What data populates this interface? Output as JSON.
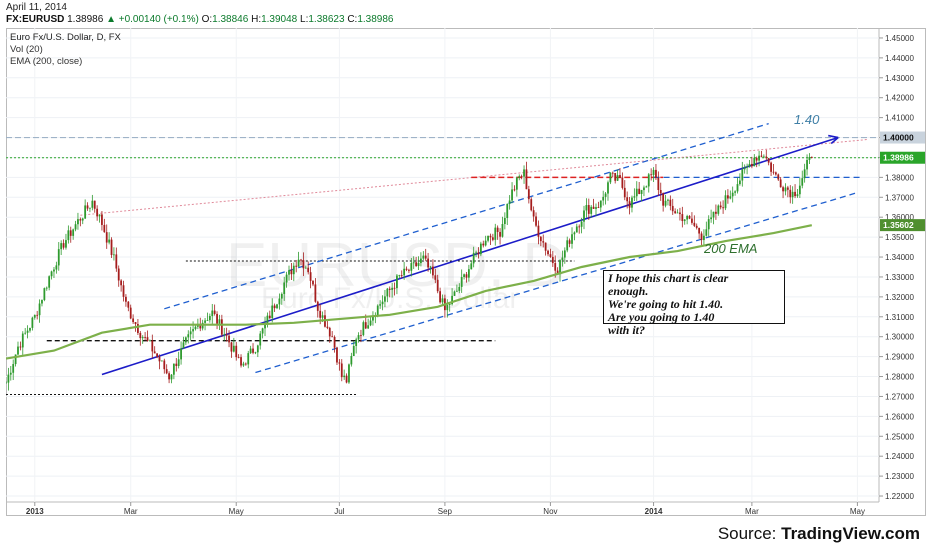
{
  "header": {
    "date": "April 11, 2014",
    "symbol": "FX:EURUSD",
    "last": "1.38986",
    "change": "+0.00140 (+0.1%)",
    "o_label": "O:",
    "o": "1.38846",
    "h_label": "H:",
    "h": "1.39048",
    "l_label": "L:",
    "l": "1.38623",
    "c_label": "C:",
    "c": "1.38986"
  },
  "legend": {
    "title": "Euro Fx/U.S. Dollar, D, FX",
    "vol": "Vol (20)",
    "ema": "EMA (200, close)"
  },
  "watermark": {
    "symbol": "EURUSD, D",
    "name": "Euro Fx/U.S. Dollar"
  },
  "annotations": {
    "target": "1.40",
    "ema_label": "200 EMA",
    "note": [
      "I hope this chart is clear",
      "enough.",
      "We're going to hit 1.40.",
      "Are you going to 1.40",
      "with it?"
    ]
  },
  "footer": {
    "prefix": "Source: ",
    "brand": "TradingView.com"
  },
  "colors": {
    "up": "#2e9a2e",
    "down": "#a51d1d",
    "ema": "#7db04a",
    "trend": "#1c1cc8",
    "channel": "#1f5fcf",
    "last_price": "#2aa52a",
    "level": "#9fb3c8"
  },
  "chart_data": {
    "type": "candlestick",
    "ylim": [
      1.217,
      1.455
    ],
    "y_ticks": [
      "1.45000",
      "1.44000",
      "1.43000",
      "1.42000",
      "1.41000",
      "1.40000",
      "1.39000",
      "1.38000",
      "1.37000",
      "1.36000",
      "1.35000",
      "1.34000",
      "1.33000",
      "1.32000",
      "1.31000",
      "1.30000",
      "1.29000",
      "1.28000",
      "1.27000",
      "1.26000",
      "1.25000",
      "1.24000",
      "1.23000",
      "1.22000"
    ],
    "x_ticks": [
      {
        "label": "2013",
        "bar": 12,
        "bold": true
      },
      {
        "label": "Mar",
        "bar": 52
      },
      {
        "label": "May",
        "bar": 96
      },
      {
        "label": "Jul",
        "bar": 139
      },
      {
        "label": "Sep",
        "bar": 183
      },
      {
        "label": "Nov",
        "bar": 227
      },
      {
        "label": "2014",
        "bar": 270,
        "bold": true
      },
      {
        "label": "Mar",
        "bar": 311
      },
      {
        "label": "May",
        "bar": 355
      }
    ],
    "price_labels": [
      {
        "value": "1.40000",
        "y": 1.4,
        "style": "level"
      },
      {
        "value": "1.38986",
        "y": 1.38986,
        "style": "last"
      },
      {
        "value": "1.35602",
        "y": 1.35602,
        "style": "ema"
      }
    ],
    "close_anchors": [
      [
        0,
        1.277
      ],
      [
        5,
        1.295
      ],
      [
        12,
        1.31
      ],
      [
        18,
        1.33
      ],
      [
        24,
        1.347
      ],
      [
        30,
        1.358
      ],
      [
        36,
        1.368
      ],
      [
        40,
        1.357
      ],
      [
        45,
        1.339
      ],
      [
        50,
        1.316
      ],
      [
        56,
        1.302
      ],
      [
        62,
        1.292
      ],
      [
        68,
        1.28
      ],
      [
        74,
        1.295
      ],
      [
        80,
        1.306
      ],
      [
        86,
        1.312
      ],
      [
        92,
        1.3
      ],
      [
        98,
        1.285
      ],
      [
        104,
        1.295
      ],
      [
        110,
        1.311
      ],
      [
        116,
        1.327
      ],
      [
        122,
        1.34
      ],
      [
        126,
        1.334
      ],
      [
        130,
        1.315
      ],
      [
        136,
        1.3
      ],
      [
        140,
        1.28
      ],
      [
        142,
        1.278
      ],
      [
        146,
        1.3
      ],
      [
        152,
        1.31
      ],
      [
        158,
        1.32
      ],
      [
        164,
        1.33
      ],
      [
        170,
        1.335
      ],
      [
        174,
        1.339
      ],
      [
        178,
        1.33
      ],
      [
        183,
        1.313
      ],
      [
        188,
        1.323
      ],
      [
        194,
        1.337
      ],
      [
        200,
        1.35
      ],
      [
        206,
        1.353
      ],
      [
        210,
        1.37
      ],
      [
        214,
        1.38
      ],
      [
        216,
        1.382
      ],
      [
        220,
        1.358
      ],
      [
        226,
        1.342
      ],
      [
        230,
        1.334
      ],
      [
        236,
        1.352
      ],
      [
        242,
        1.364
      ],
      [
        248,
        1.367
      ],
      [
        252,
        1.38
      ],
      [
        256,
        1.378
      ],
      [
        260,
        1.367
      ],
      [
        266,
        1.376
      ],
      [
        270,
        1.382
      ],
      [
        274,
        1.368
      ],
      [
        280,
        1.362
      ],
      [
        286,
        1.357
      ],
      [
        290,
        1.351
      ],
      [
        296,
        1.362
      ],
      [
        302,
        1.372
      ],
      [
        308,
        1.383
      ],
      [
        312,
        1.39
      ],
      [
        316,
        1.392
      ],
      [
        320,
        1.382
      ],
      [
        324,
        1.376
      ],
      [
        328,
        1.372
      ],
      [
        330,
        1.374
      ],
      [
        334,
        1.386
      ],
      [
        336,
        1.39
      ]
    ],
    "ema_points": [
      [
        0,
        1.289
      ],
      [
        20,
        1.293
      ],
      [
        40,
        1.302
      ],
      [
        60,
        1.306
      ],
      [
        80,
        1.306
      ],
      [
        100,
        1.306
      ],
      [
        120,
        1.307
      ],
      [
        140,
        1.309
      ],
      [
        160,
        1.311
      ],
      [
        180,
        1.315
      ],
      [
        200,
        1.323
      ],
      [
        220,
        1.328
      ],
      [
        240,
        1.335
      ],
      [
        260,
        1.34
      ],
      [
        280,
        1.343
      ],
      [
        300,
        1.348
      ],
      [
        320,
        1.352
      ],
      [
        336,
        1.356
      ]
    ],
    "lines": {
      "main_trend": [
        [
          40,
          1.281
        ],
        [
          347,
          1.4
        ]
      ],
      "channel_upper": [
        [
          66,
          1.314
        ],
        [
          318,
          1.407
        ]
      ],
      "channel_lower": [
        [
          104,
          1.282
        ],
        [
          354,
          1.372
        ]
      ],
      "channel_mid": [
        [
          270,
          1.38
        ],
        [
          356,
          1.38
        ]
      ],
      "resist_red": [
        [
          194,
          1.38
        ],
        [
          274,
          1.38
        ]
      ],
      "pink_trend": [
        [
          31,
          1.361
        ],
        [
          359,
          1.399
        ]
      ],
      "level_140": [
        [
          0,
          1.4
        ],
        [
          364,
          1.4
        ]
      ],
      "last_price": [
        [
          0,
          1.38986
        ],
        [
          364,
          1.38986
        ]
      ],
      "black_1": [
        [
          17,
          1.298
        ],
        [
          204,
          1.298
        ]
      ],
      "black_2": [
        [
          75,
          1.338
        ],
        [
          237,
          1.338
        ]
      ],
      "black_3": [
        [
          0,
          1.271
        ],
        [
          146,
          1.271
        ]
      ]
    },
    "x_range": [
      0,
      364
    ]
  }
}
